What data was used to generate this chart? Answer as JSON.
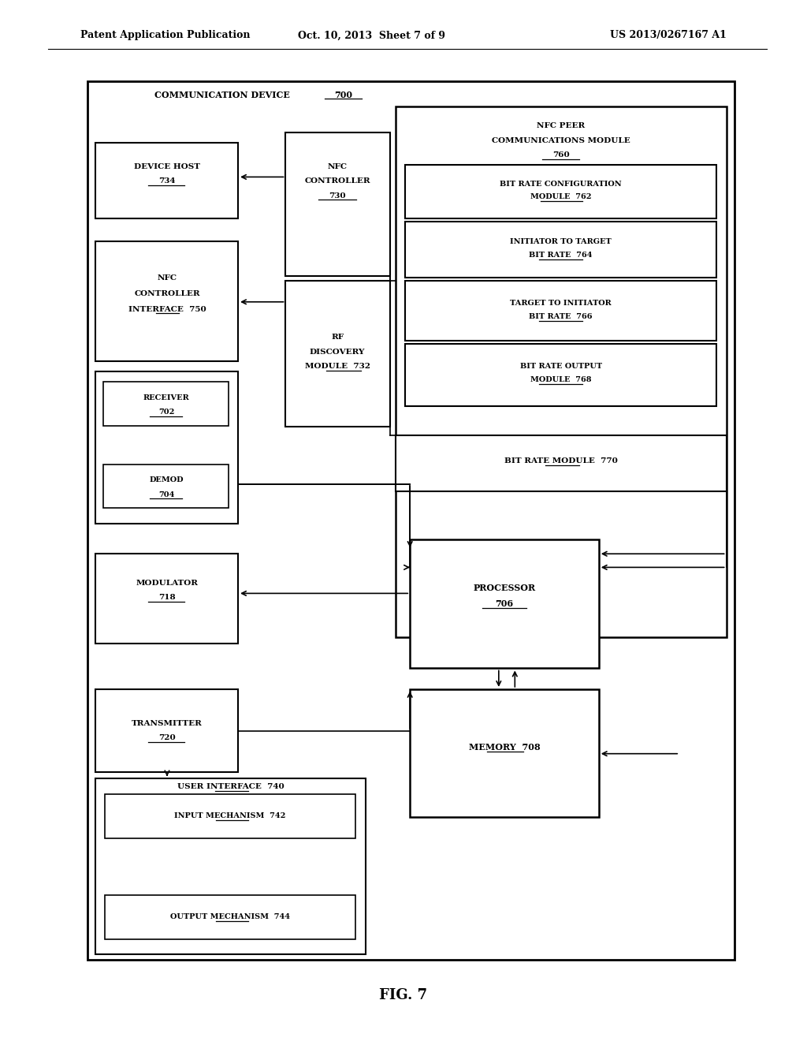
{
  "bg_color": "#ffffff",
  "header_left": "Patent Application Publication",
  "header_mid": "Oct. 10, 2013  Sheet 7 of 9",
  "header_right": "US 2013/0267167 A1",
  "fig_label": "FIG. 7"
}
